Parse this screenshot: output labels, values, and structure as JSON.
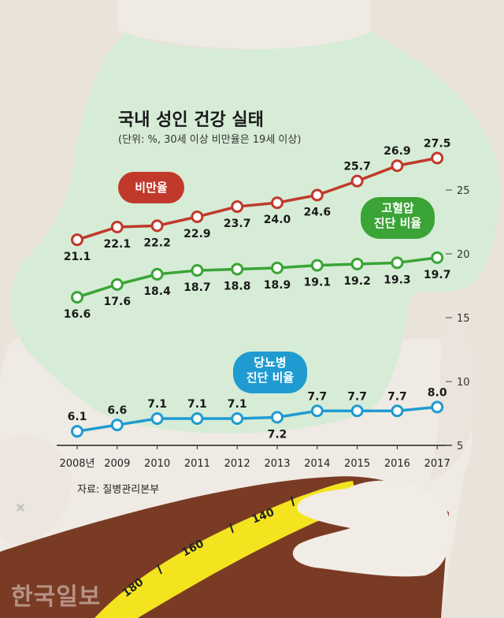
{
  "header": {
    "title": "국내 성인 건강 실태",
    "subtitle": "(단위: %, 30세 이상 비만율은 19세 이상)"
  },
  "source": "자료: 질병관리본부",
  "watermark": "한국일보",
  "colors": {
    "obesity": "#c0392b",
    "hypertension": "#3aa436",
    "diabetes": "#1f9bd1",
    "shirt": "#d6ecd6",
    "belly": "#f0eae4",
    "pants": "#7a3b24",
    "tape": "#f3e41f"
  },
  "labels": {
    "obesity": [
      "비만율"
    ],
    "hypertension": [
      "고혈압",
      "진단 비율"
    ],
    "diabetes": [
      "당뇨병",
      "진단 비율"
    ]
  },
  "tape_marks": [
    "140",
    "160",
    "180"
  ],
  "chart_data": {
    "type": "line",
    "title": "국내 성인 건강 실태",
    "subtitle": "(단위: %, 30세 이상 비만율은 19세 이상)",
    "categories": [
      "2008년",
      "2009",
      "2010",
      "2011",
      "2012",
      "2013",
      "2014",
      "2015",
      "2016",
      "2017"
    ],
    "ylim": [
      5,
      28
    ],
    "yticks": [
      5,
      10,
      15,
      20,
      25
    ],
    "series": [
      {
        "name": "비만율",
        "values": [
          21.1,
          22.1,
          22.2,
          22.9,
          23.7,
          24.0,
          24.6,
          25.7,
          26.9,
          27.5
        ],
        "labels": [
          "21.1",
          "22.1",
          "22.2",
          "22.9",
          "23.7",
          "24.0",
          "24.6",
          "25.7",
          "26.9",
          "27.5"
        ]
      },
      {
        "name": "고혈압 진단 비율",
        "values": [
          16.6,
          17.6,
          18.4,
          18.7,
          18.8,
          18.9,
          19.1,
          19.2,
          19.3,
          19.7
        ],
        "labels": [
          "16.6",
          "17.6",
          "18.4",
          "18.7",
          "18.8",
          "18.9",
          "19.1",
          "19.2",
          "19.3",
          "19.7"
        ]
      },
      {
        "name": "당뇨병 진단 비율",
        "values": [
          6.1,
          6.6,
          7.1,
          7.1,
          7.1,
          7.2,
          7.7,
          7.7,
          7.7,
          8.0
        ],
        "labels": [
          "6.1",
          "6.6",
          "7.1",
          "7.1",
          "7.1",
          "7.2",
          "7.7",
          "7.7",
          "7.7",
          "8.0"
        ]
      }
    ]
  }
}
